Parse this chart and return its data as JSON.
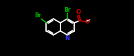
{
  "bg_color": "#000000",
  "bond_color": "#ffffff",
  "br_color": "#00bb00",
  "o_color": "#cc0000",
  "n_color": "#3333ff",
  "figsize": [
    1.95,
    0.81
  ],
  "dpi": 100,
  "lw": 1.3,
  "xlim": [
    -0.15,
    1.05
  ],
  "ylim": [
    -0.05,
    0.95
  ]
}
